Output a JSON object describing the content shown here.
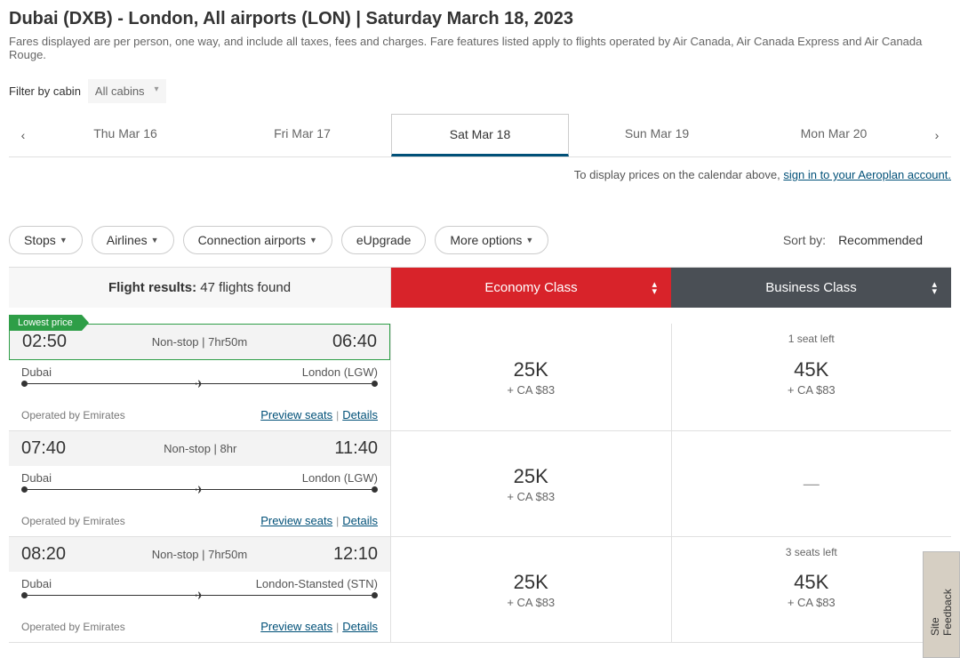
{
  "header": {
    "route": "Dubai (DXB) - London, All airports (LON)  |  Saturday March 18, 2023",
    "subtitle": "Fares displayed are per person, one way, and include all taxes, fees and charges. Fare features listed apply to flights operated by Air Canada, Air Canada Express and Air Canada Rouge."
  },
  "cabinFilter": {
    "label": "Filter by cabin",
    "value": "All cabins"
  },
  "dateTabs": [
    "Thu Mar 16",
    "Fri Mar 17",
    "Sat Mar 18",
    "Sun Mar 19",
    "Mon Mar 20"
  ],
  "dateActiveIndex": 2,
  "signinMsg": {
    "prefix": "To display prices on the calendar above, ",
    "link": "sign in to your Aeroplan account."
  },
  "pills": {
    "stops": "Stops",
    "airlines": "Airlines",
    "connection": "Connection airports",
    "eupgrade": "eUpgrade",
    "more": "More options"
  },
  "sort": {
    "label": "Sort by:",
    "value": "Recommended"
  },
  "resultsHeader": {
    "label": "Flight results:",
    "count": "47 flights found"
  },
  "classTabs": {
    "economy": "Economy Class",
    "business": "Business Class"
  },
  "flights": [
    {
      "lowest": "Lowest price",
      "dep": "02:50",
      "arr": "06:40",
      "stopsDur": "Non-stop | 7hr50m",
      "from": "Dubai",
      "to": "London (LGW)",
      "operator": "Operated by Emirates",
      "preview": "Preview seats",
      "details": "Details",
      "econ": {
        "price": "25K",
        "sub": "+ CA $83"
      },
      "biz": {
        "seats": "1 seat left",
        "price": "45K",
        "sub": "+ CA $83"
      }
    },
    {
      "dep": "07:40",
      "arr": "11:40",
      "stopsDur": "Non-stop | 8hr",
      "from": "Dubai",
      "to": "London (LGW)",
      "operator": "Operated by Emirates",
      "preview": "Preview seats",
      "details": "Details",
      "econ": {
        "price": "25K",
        "sub": "+ CA $83"
      },
      "biz": {
        "dash": "—"
      }
    },
    {
      "dep": "08:20",
      "arr": "12:10",
      "stopsDur": "Non-stop | 7hr50m",
      "from": "Dubai",
      "to": "London-Stansted (STN)",
      "operator": "Operated by Emirates",
      "preview": "Preview seats",
      "details": "Details",
      "econ": {
        "price": "25K",
        "sub": "+ CA $83"
      },
      "biz": {
        "seats": "3 seats left",
        "price": "45K",
        "sub": "+ CA $83"
      }
    }
  ],
  "feedback": "Site Feedback"
}
